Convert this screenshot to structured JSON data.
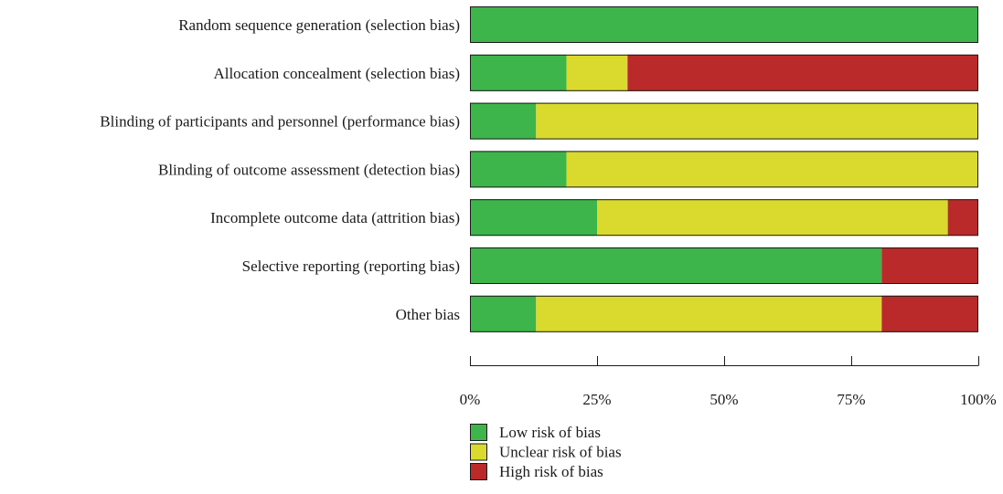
{
  "chart_data": {
    "type": "bar",
    "orientation": "horizontal",
    "stacked": true,
    "title": "",
    "xlabel": "",
    "ylabel": "",
    "xlim": [
      0,
      100
    ],
    "x_unit": "%",
    "ticks": [
      "0%",
      "25%",
      "50%",
      "75%",
      "100%"
    ],
    "tick_values": [
      0,
      25,
      50,
      75,
      100
    ],
    "categories": [
      "Random sequence generation (selection bias)",
      "Allocation concealment (selection bias)",
      "Blinding of participants and personnel (performance bias)",
      "Blinding of outcome assessment (detection bias)",
      "Incomplete outcome data (attrition bias)",
      "Selective reporting (reporting bias)",
      "Other bias"
    ],
    "series": [
      {
        "name": "Low risk of bias",
        "color": "#3db54a",
        "values": [
          100,
          19,
          13,
          19,
          25,
          81,
          13
        ]
      },
      {
        "name": "Unclear risk of bias",
        "color": "#d9d92e",
        "values": [
          0,
          12,
          87,
          81,
          69,
          0,
          68
        ]
      },
      {
        "name": "High risk of bias",
        "color": "#bb2a2a",
        "values": [
          0,
          69,
          0,
          0,
          6,
          19,
          19
        ]
      }
    ],
    "legend_position": "bottom-left",
    "grid": false
  }
}
